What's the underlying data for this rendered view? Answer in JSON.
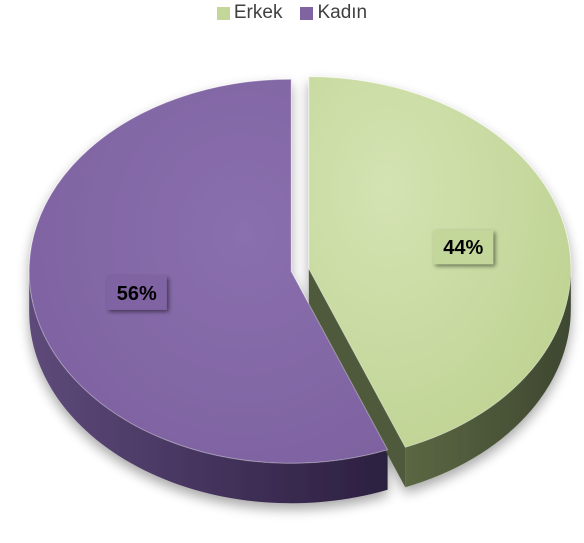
{
  "chart_data": {
    "type": "pie",
    "categories": [
      "Erkek",
      "Kadın"
    ],
    "values": [
      44,
      56
    ],
    "labels": [
      "44%",
      "56%"
    ],
    "colors": {
      "Erkek": "#c4d79b",
      "Kadın": "#8064a2"
    },
    "side_colors": {
      "Erkek": "#4f5a3c",
      "Kadın": "#3f2f57"
    },
    "label_box_color": "#c4d79b",
    "legend_placement": "top",
    "exploded": true,
    "three_d": true
  }
}
